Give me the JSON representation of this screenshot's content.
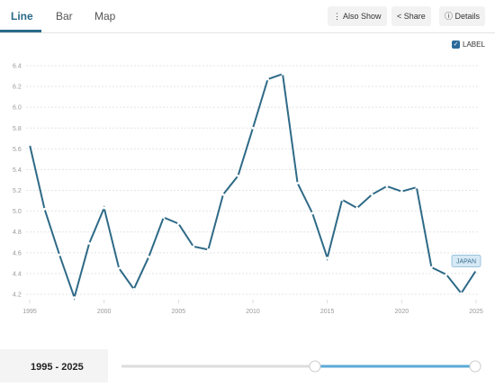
{
  "tabs": [
    "Line",
    "Bar",
    "Map"
  ],
  "actions": [
    "Also Show",
    "Share",
    "Details"
  ],
  "label_toggle": "LABEL",
  "time_range": "1995 - 2025",
  "chart_data": {
    "type": "line",
    "x": [
      1995,
      1996,
      1997,
      1998,
      1999,
      2000,
      2001,
      2002,
      2003,
      2004,
      2005,
      2006,
      2007,
      2008,
      2009,
      2010,
      2011,
      2012,
      2013,
      2014,
      2015,
      2016,
      2017,
      2018,
      2019,
      2020,
      2021,
      2022,
      2023,
      2024,
      2025
    ],
    "series": [
      {
        "name": "JAPAN",
        "color": "#2e6a87",
        "values": [
          5.64,
          5.02,
          4.58,
          4.17,
          4.69,
          5.03,
          4.45,
          4.25,
          4.56,
          4.94,
          4.88,
          4.66,
          4.63,
          5.16,
          5.34,
          5.8,
          6.27,
          6.32,
          5.27,
          4.98,
          4.55,
          5.11,
          5.03,
          5.16,
          5.24,
          5.19,
          5.23,
          4.46,
          4.39,
          4.21,
          4.43
        ]
      }
    ],
    "xlim": [
      1995,
      2025
    ],
    "xticks": [
      1995,
      2000,
      2005,
      2010,
      2015,
      2020,
      2025
    ],
    "ylim": [
      4.2,
      6.4
    ],
    "yticks": [
      4.2,
      4.4,
      4.6,
      4.8,
      {
        "value": 5,
        "label": "5.0"
      },
      5.2,
      5.4,
      5.6,
      5.8,
      {
        "value": 6,
        "label": "6.0"
      },
      6.2,
      6.4
    ],
    "grid": true
  }
}
